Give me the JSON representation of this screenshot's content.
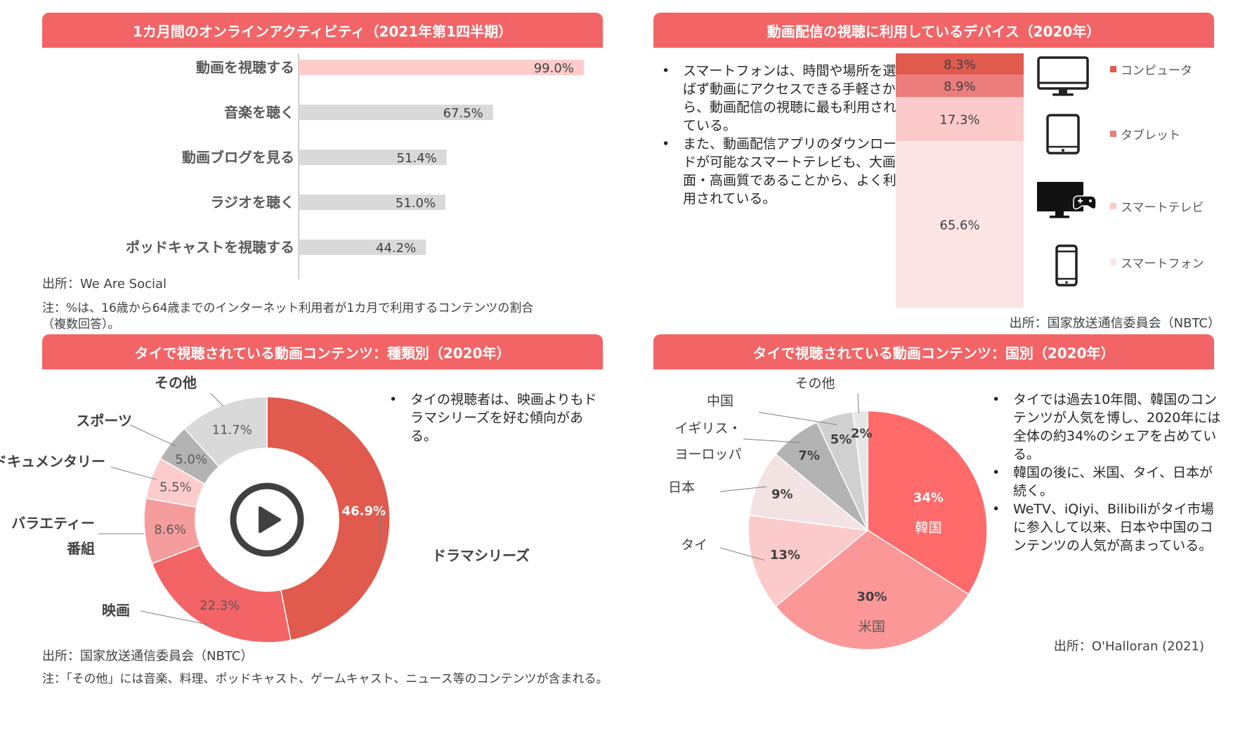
{
  "panels": {
    "activity": {
      "title": "1カ月間のオンラインアクティビティ（2021年第1四半期）",
      "source": "出所：We Are Social",
      "note_line1": "注：%は、16歳から64歳までのインターネット利用者が1カ月で利用するコンテンツの割合",
      "note_line2": "（複数回答）。"
    },
    "devices": {
      "title": "動画配信の視聴に利用しているデバイス（2020年）",
      "bullets": [
        "スマートフォンは、時間や場所を選ばず動画にアクセスできる手軽さから、動画配信の視聴に最も利用されている。",
        "また、動画配信アプリのダウンロードが可能なスマートテレビも、大画面・高画質であることから、よく利用されている。"
      ],
      "source": "出所：国家放送通信委員会（NBTC）"
    },
    "genre": {
      "title": "タイで視聴されている動画コンテンツ：種類別（2020年）",
      "bullets": [
        "タイの視聴者は、映画よりもドラマシリーズを好む傾向がある。"
      ],
      "source": "出所：国家放送通信委員会（NBTC）",
      "note": "注：「その他」には音楽、料理、ポッドキャスト、ゲームキャスト、ニュース等のコンテンツが含まれる。"
    },
    "country": {
      "title": "タイで視聴されている動画コンテンツ：国別（2020年）",
      "bullets": [
        "タイでは過去10年間、韓国のコンテンツが人気を博し、2020年には全体の約34%のシェアを占めている。",
        "韓国の後に、米国、タイ、日本が続く。",
        "WeTV、iQiyi、Bilibiliがタイ市場に参入して以来、日本や中国のコンテンツの人気が高まっている。"
      ],
      "source": "出所：O'Halloran (2021)"
    }
  },
  "chart_data": [
    {
      "type": "bar",
      "orientation": "horizontal",
      "title": "1カ月間のオンラインアクティビティ（2021年第1四半期）",
      "categories": [
        "動画を視聴する",
        "音楽を聴く",
        "動画ブログを見る",
        "ラジオを聴く",
        "ポッドキャストを視聴する"
      ],
      "values": [
        99.0,
        67.5,
        51.4,
        51.0,
        44.2
      ],
      "labels": [
        "99.0%",
        "67.5%",
        "51.4%",
        "51.0%",
        "44.2%"
      ],
      "bar_colors": [
        "#ffcccc",
        "#d9d9d9",
        "#d9d9d9",
        "#d9d9d9",
        "#d9d9d9"
      ],
      "xlim": [
        0,
        100
      ]
    },
    {
      "type": "bar",
      "stacked": true,
      "title": "動画配信の視聴に利用しているデバイス（2020年）",
      "series": [
        {
          "name": "スマートフォン",
          "value": 65.6,
          "label": "65.6%",
          "color": "#fce4e4",
          "icon": "smartphone-icon"
        },
        {
          "name": "スマートテレビ",
          "value": 17.3,
          "label": "17.3%",
          "color": "#fccaca",
          "icon": "smart-tv-icon"
        },
        {
          "name": "タブレット",
          "value": 8.9,
          "label": "8.9%",
          "color": "#ec7d7d",
          "icon": "tablet-icon"
        },
        {
          "name": "コンピュータ",
          "value": 8.3,
          "label": "8.3%",
          "color": "#e05a4e",
          "icon": "computer-icon"
        }
      ]
    },
    {
      "type": "pie",
      "donut": true,
      "title": "タイで視聴されている動画コンテンツ：種類別（2020年）",
      "slices": [
        {
          "name": "ドラマシリーズ",
          "value": 46.9,
          "label": "46.9%",
          "color": "#e05a4e"
        },
        {
          "name": "映画",
          "value": 22.3,
          "label": "22.3%",
          "color": "#f36466"
        },
        {
          "name": "バラエティー番組",
          "value": 8.6,
          "label": "8.6%",
          "color": "#f59c9c"
        },
        {
          "name": "ドキュメンタリー",
          "value": 5.5,
          "label": "5.5%",
          "color": "#fccccc"
        },
        {
          "name": "スポーツ",
          "value": 5.0,
          "label": "5.0%",
          "color": "#b3b3b3"
        },
        {
          "name": "その他",
          "value": 11.7,
          "label": "11.7%",
          "color": "#d9d9d9"
        }
      ],
      "category_labels": {
        "drama": "ドラマシリーズ",
        "movie": "映画",
        "variety1": "バラエティー",
        "variety2": "番組",
        "doc": "ドキュメンタリー",
        "sports": "スポーツ",
        "other": "その他"
      }
    },
    {
      "type": "pie",
      "title": "タイで視聴されている動画コンテンツ：国別（2020年）",
      "slices": [
        {
          "name": "韓国",
          "value": 34,
          "label": "34%",
          "color": "#ff6b6b"
        },
        {
          "name": "米国",
          "value": 30,
          "label": "30%",
          "color": "#fb9797"
        },
        {
          "name": "タイ",
          "value": 13,
          "label": "13%",
          "color": "#fbcaca"
        },
        {
          "name": "日本",
          "value": 9,
          "label": "9%",
          "color": "#f2e2e2"
        },
        {
          "name": "イギリス・ヨーロッパ",
          "value": 7,
          "label": "7%",
          "color": "#b3b3b3"
        },
        {
          "name": "中国",
          "value": 5,
          "label": "5%",
          "color": "#d0d0d0"
        },
        {
          "name": "その他",
          "value": 2,
          "label": "2%",
          "color": "#e6e6e6"
        }
      ],
      "category_labels": {
        "korea": "韓国",
        "usa": "米国",
        "thai": "タイ",
        "japan": "日本",
        "uk1": "イギリス・",
        "uk2": "ヨーロッパ",
        "china": "中国",
        "other": "その他"
      }
    }
  ]
}
